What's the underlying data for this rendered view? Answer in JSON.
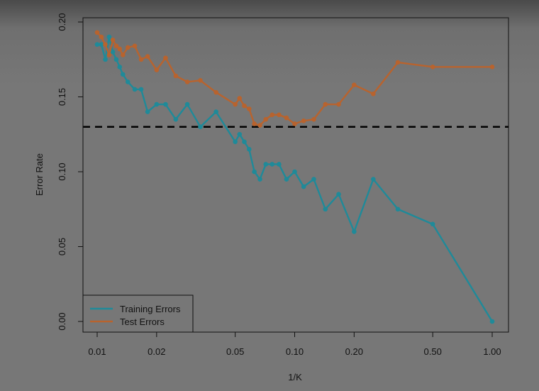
{
  "chart_data": {
    "type": "line",
    "xlabel": "1/K",
    "ylabel": "Error Rate",
    "x_scale": "log",
    "xlim": [
      0.01,
      1.0
    ],
    "ylim": [
      0.0,
      0.2
    ],
    "x_ticks": [
      0.01,
      0.02,
      0.05,
      0.1,
      0.2,
      0.5,
      1.0
    ],
    "x_tick_labels": [
      "0.01",
      "0.02",
      "0.05",
      "0.10",
      "0.20",
      "0.50",
      "1.00"
    ],
    "y_ticks": [
      0.0,
      0.05,
      0.1,
      0.15,
      0.2
    ],
    "y_tick_labels": [
      "0.00",
      "0.05",
      "0.10",
      "0.15",
      "0.20"
    ],
    "reference_line": {
      "y": 0.13,
      "style": "dashed",
      "color": "#000000"
    },
    "legend": {
      "placement": "bottom-left"
    },
    "series": [
      {
        "name": "Training Errors",
        "color": "#1f8a99",
        "x": [
          0.01,
          0.0105,
          0.011,
          0.0115,
          0.012,
          0.0125,
          0.013,
          0.0135,
          0.0143,
          0.0155,
          0.0167,
          0.018,
          0.02,
          0.0222,
          0.025,
          0.0286,
          0.0333,
          0.04,
          0.05,
          0.0526,
          0.0556,
          0.0588,
          0.0625,
          0.0667,
          0.0714,
          0.0769,
          0.0833,
          0.0909,
          0.1,
          0.111,
          0.125,
          0.143,
          0.167,
          0.2,
          0.25,
          0.333,
          0.5,
          1.0
        ],
        "values": [
          0.185,
          0.185,
          0.175,
          0.19,
          0.18,
          0.175,
          0.17,
          0.165,
          0.16,
          0.155,
          0.155,
          0.14,
          0.145,
          0.145,
          0.135,
          0.145,
          0.13,
          0.14,
          0.12,
          0.125,
          0.12,
          0.115,
          0.1,
          0.095,
          0.105,
          0.105,
          0.105,
          0.095,
          0.1,
          0.09,
          0.095,
          0.075,
          0.085,
          0.06,
          0.095,
          0.075,
          0.065,
          0.0
        ]
      },
      {
        "name": "Test Errors",
        "color": "#b8632e",
        "x": [
          0.01,
          0.0105,
          0.011,
          0.0115,
          0.012,
          0.0125,
          0.013,
          0.0135,
          0.0143,
          0.0155,
          0.0167,
          0.018,
          0.02,
          0.0222,
          0.025,
          0.0286,
          0.0333,
          0.04,
          0.05,
          0.0526,
          0.0556,
          0.0588,
          0.0625,
          0.0667,
          0.0714,
          0.0769,
          0.0833,
          0.0909,
          0.1,
          0.111,
          0.125,
          0.143,
          0.167,
          0.2,
          0.25,
          0.333,
          0.5,
          1.0
        ],
        "values": [
          0.193,
          0.19,
          0.185,
          0.178,
          0.188,
          0.184,
          0.182,
          0.178,
          0.183,
          0.184,
          0.175,
          0.177,
          0.168,
          0.176,
          0.164,
          0.16,
          0.161,
          0.153,
          0.145,
          0.149,
          0.144,
          0.142,
          0.132,
          0.131,
          0.135,
          0.138,
          0.138,
          0.136,
          0.132,
          0.134,
          0.135,
          0.145,
          0.145,
          0.158,
          0.152,
          0.173,
          0.17,
          0.17
        ]
      }
    ]
  }
}
